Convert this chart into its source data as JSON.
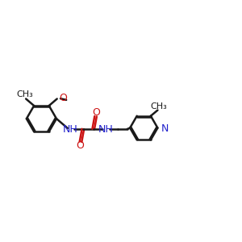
{
  "bg": "#ffffff",
  "bc": "#1a1a1a",
  "nc": "#2020cc",
  "oc": "#cc1414",
  "lw": 1.8,
  "doff": 0.05,
  "figsize": [
    3.0,
    3.0
  ],
  "dpi": 100,
  "xlim": [
    0.0,
    10.5
  ],
  "ylim": [
    1.2,
    5.0
  ]
}
